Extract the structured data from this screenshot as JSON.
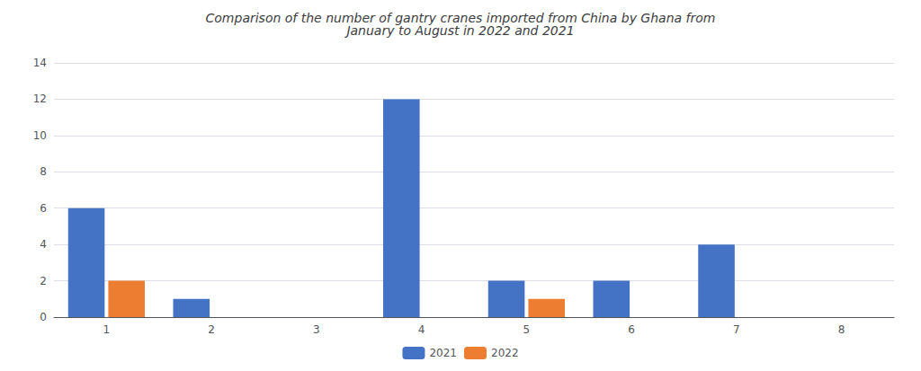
{
  "chart_data": {
    "type": "bar",
    "title": "Comparison of the number of gantry cranes imported from China by Ghana from\nJanuary to August in 2022 and 2021",
    "categories": [
      "1",
      "2",
      "3",
      "4",
      "5",
      "6",
      "7",
      "8"
    ],
    "series": [
      {
        "name": "2021",
        "color": "#4472C4",
        "values": [
          6,
          1,
          0,
          12,
          2,
          2,
          4,
          0
        ]
      },
      {
        "name": "2022",
        "color": "#ED7D31",
        "values": [
          2,
          0,
          0,
          0,
          1,
          0,
          0,
          0
        ]
      }
    ],
    "ylim": [
      0,
      14
    ],
    "yticks": [
      0,
      2,
      4,
      6,
      8,
      10,
      12,
      14
    ],
    "grid": true,
    "legend": "bottom"
  }
}
